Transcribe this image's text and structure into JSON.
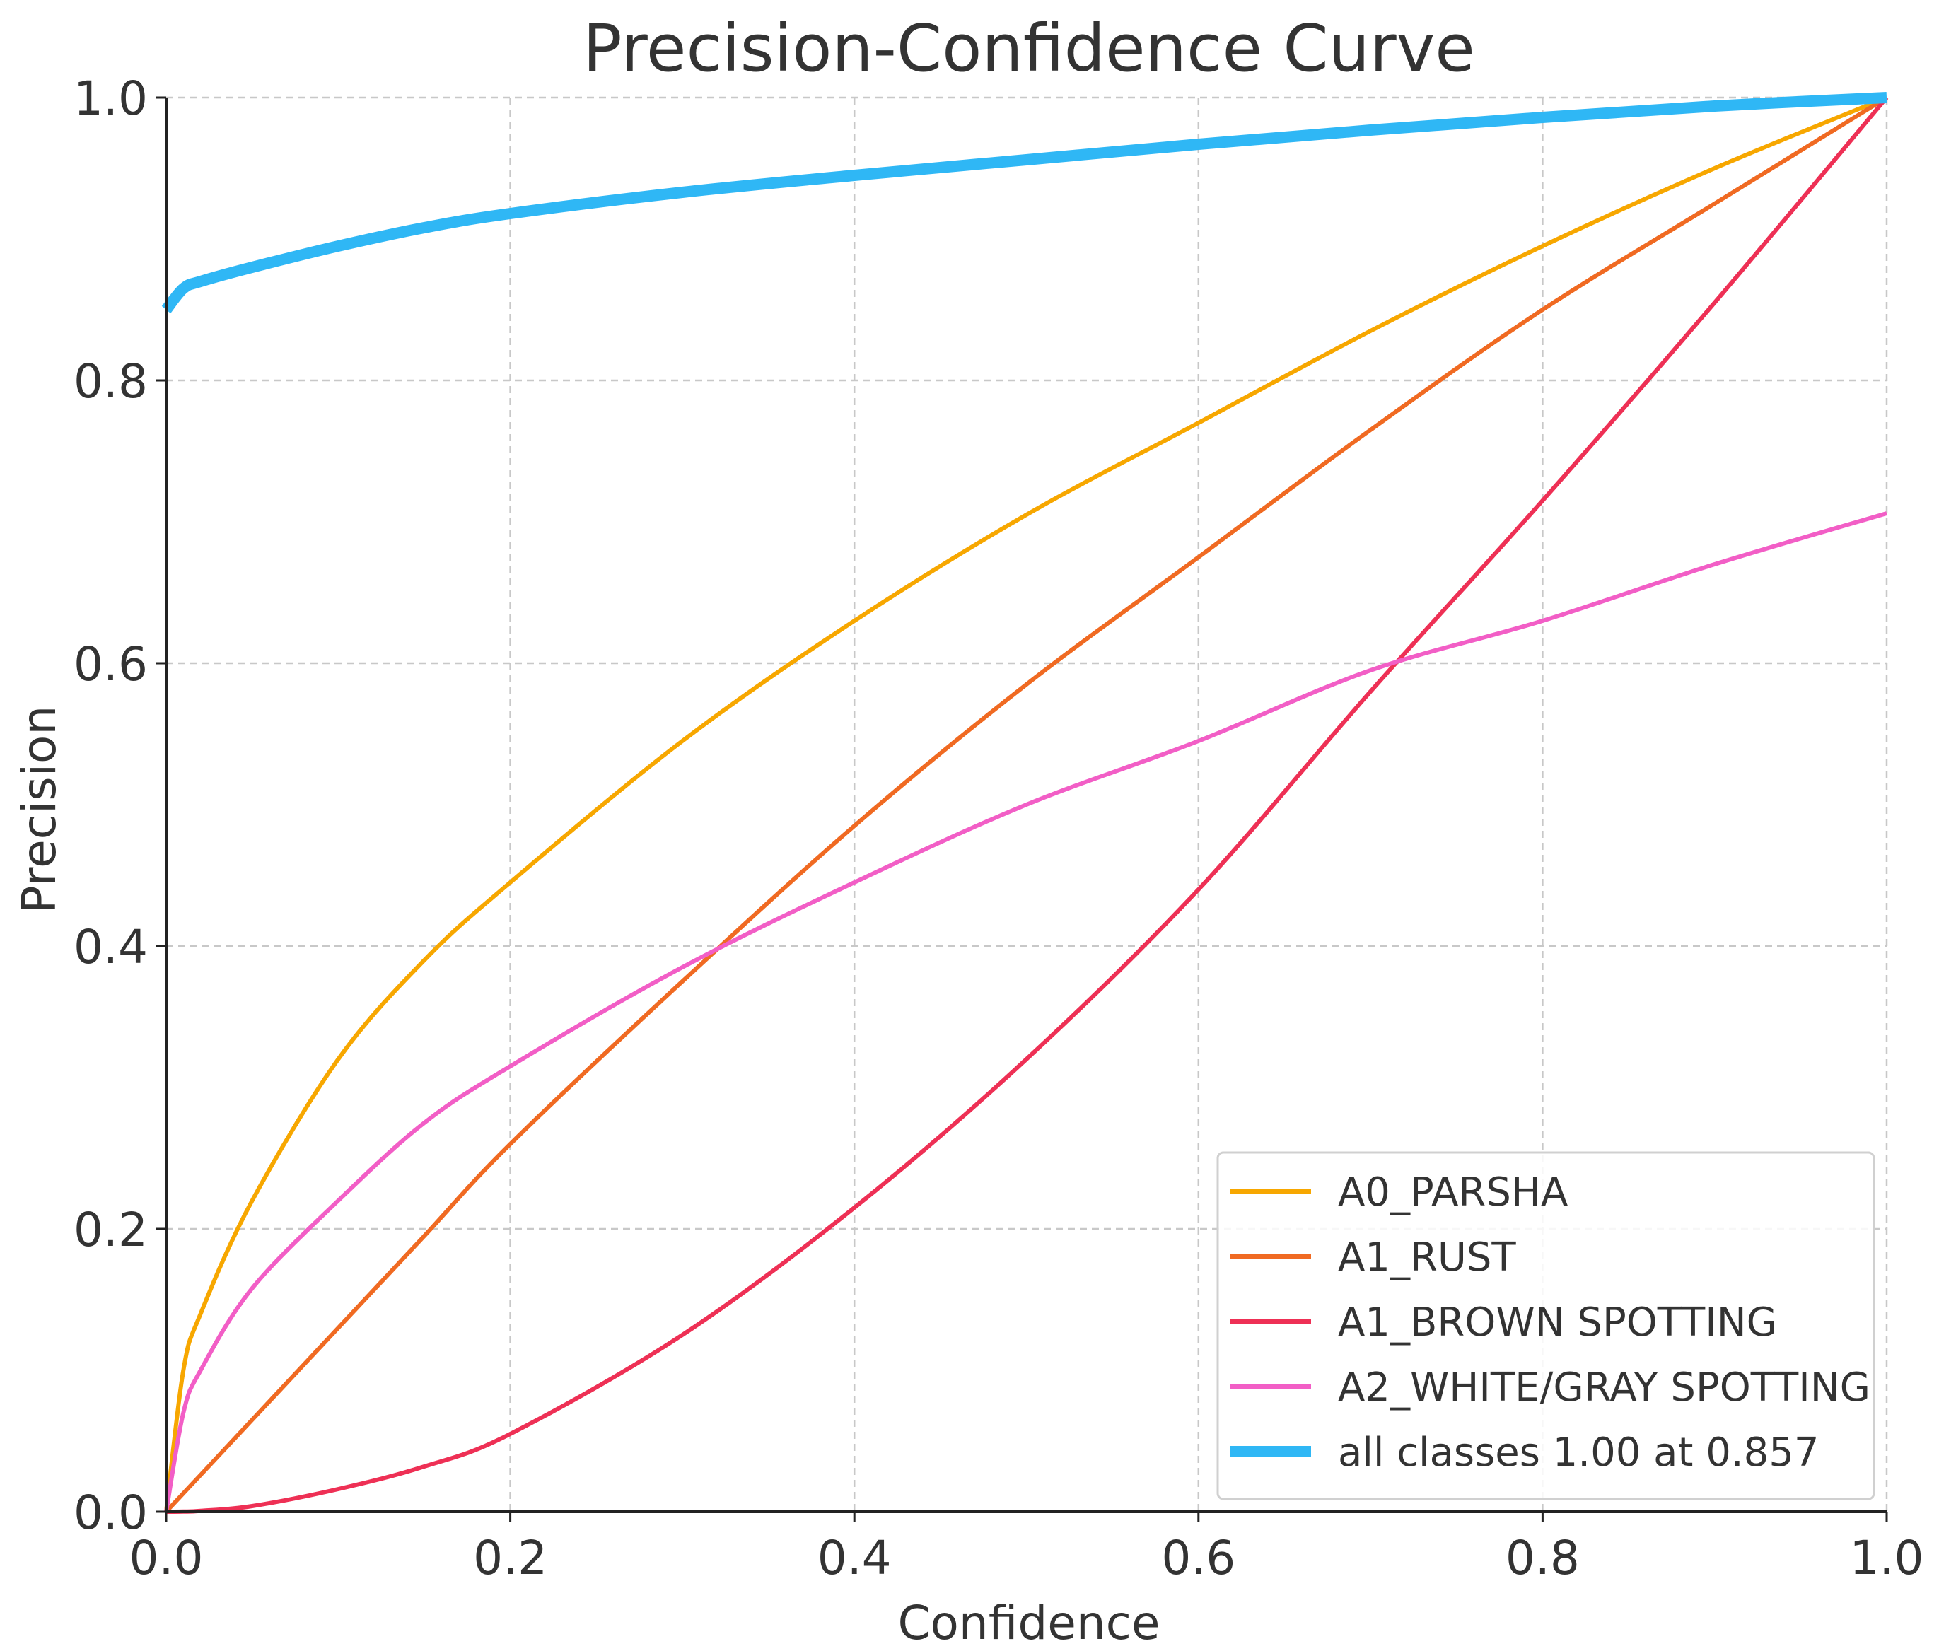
{
  "chart_data": {
    "type": "line",
    "title": "Precision-Confidence Curve",
    "xlabel": "Confidence",
    "ylabel": "Precision",
    "xlim": [
      0,
      1
    ],
    "ylim": [
      0,
      1
    ],
    "grid": true,
    "legend_position": "bottom-right",
    "x_ticks": [
      "0.0",
      "0.2",
      "0.4",
      "0.6",
      "0.8",
      "1.0"
    ],
    "y_ticks": [
      "0.0",
      "0.2",
      "0.4",
      "0.6",
      "0.8",
      "1.0"
    ],
    "x": [
      0,
      0.01,
      0.02,
      0.05,
      0.1,
      0.15,
      0.2,
      0.3,
      0.4,
      0.5,
      0.6,
      0.7,
      0.8,
      0.9,
      1.0
    ],
    "series": [
      {
        "name": "A0_PARSHA",
        "color": "#F7A700",
        "values": [
          0,
          0.1,
          0.14,
          0.22,
          0.32,
          0.39,
          0.445,
          0.545,
          0.63,
          0.705,
          0.77,
          0.835,
          0.895,
          0.95,
          1.0
        ]
      },
      {
        "name": "A1_RUST",
        "color": "#F06A22",
        "values": [
          0,
          0.013,
          0.026,
          0.065,
          0.13,
          0.195,
          0.26,
          0.375,
          0.485,
          0.585,
          0.675,
          0.765,
          0.85,
          0.925,
          1.0
        ]
      },
      {
        "name": "A1_BROWN SPOTTING",
        "color": "#EE3055",
        "values": [
          0,
          0.0001,
          0.0006,
          0.004,
          0.016,
          0.032,
          0.055,
          0.125,
          0.215,
          0.32,
          0.44,
          0.58,
          0.715,
          0.855,
          1.0
        ]
      },
      {
        "name": "A2_WHITE/GRAY SPOTTING",
        "color": "#F25EC6",
        "values": [
          0,
          0.07,
          0.1,
          0.158,
          0.22,
          0.275,
          0.315,
          0.385,
          0.445,
          0.5,
          0.545,
          0.595,
          0.63,
          0.67,
          0.706
        ]
      },
      {
        "name": "all classes 1.00 at 0.857",
        "color": "#2FB7F5",
        "thick": true,
        "values": [
          0.85,
          0.865,
          0.87,
          0.88,
          0.895,
          0.908,
          0.918,
          0.933,
          0.945,
          0.956,
          0.967,
          0.977,
          0.986,
          0.994,
          1.0
        ]
      }
    ]
  }
}
